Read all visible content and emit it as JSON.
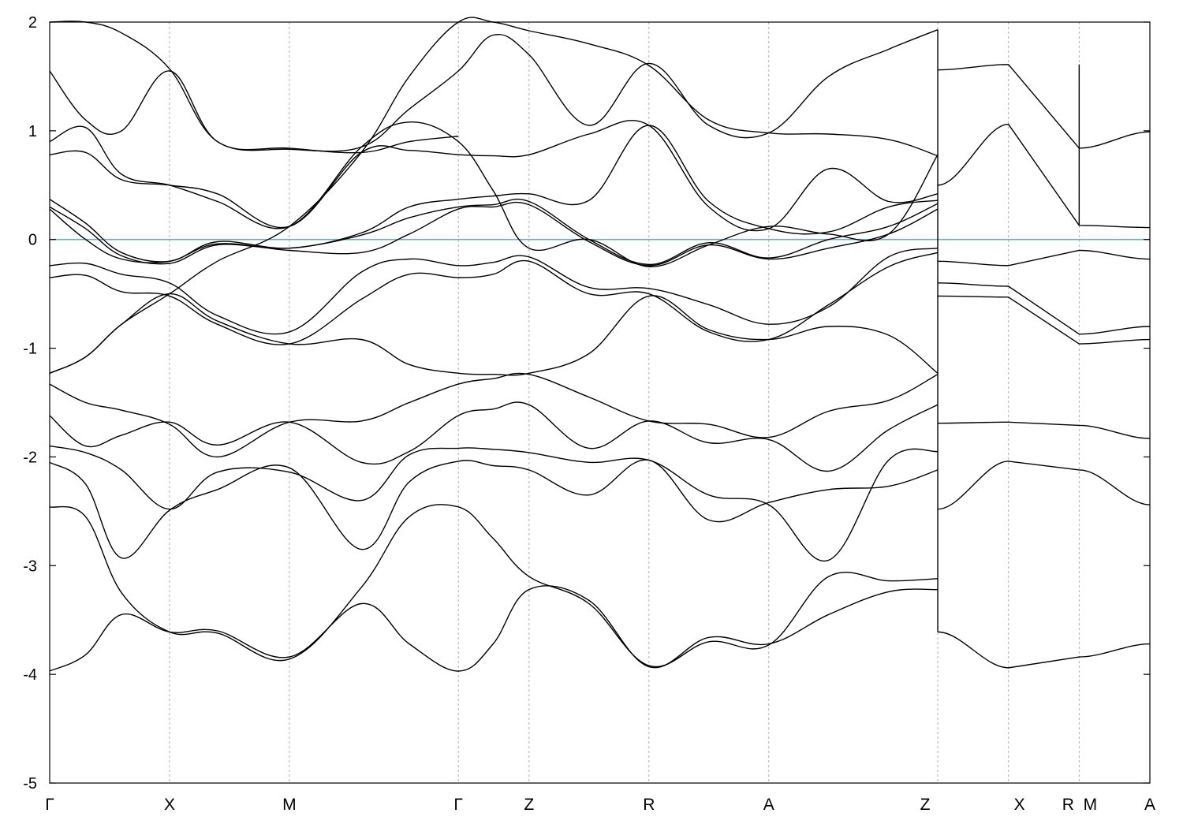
{
  "chart_data": {
    "type": "line",
    "title": "",
    "xlabel": "",
    "ylabel": "",
    "ylim": [
      -5,
      2
    ],
    "yticks": [
      -5,
      -4,
      -3,
      -2,
      -1,
      0,
      1,
      2
    ],
    "kpoints": [
      {
        "label": "Γ",
        "x": 0.0
      },
      {
        "label": "X",
        "x": 1.0
      },
      {
        "label": "M",
        "x": 2.0
      },
      {
        "label": "Γ",
        "x": 3.41
      },
      {
        "label": "Z",
        "x": 4.0
      },
      {
        "label": "R",
        "x": 5.0
      },
      {
        "label": "A",
        "x": 6.0
      },
      {
        "label": "Z",
        "x": 7.41
      },
      {
        "label": "X",
        "x": 8.0
      },
      {
        "label": "R",
        "x": 8.59
      },
      {
        "label": "M",
        "x": 8.59
      },
      {
        "label": "A",
        "x": 9.18
      }
    ],
    "fermi_level": 0,
    "fermi_color": "#5fb3c6",
    "line_color": "#000000",
    "grid": "dashed vertical lines at k-points",
    "series": [
      {
        "x": [
          0,
          0.3,
          0.6,
          1.0,
          1.4,
          2.0,
          2.6,
          3.0,
          3.41,
          3.7,
          4.0,
          4.5,
          5.0,
          5.5,
          6.0,
          6.5,
          7.0,
          7.41
        ],
        "values": [
          -3.97,
          -3.82,
          -3.45,
          -3.61,
          -3.6,
          -3.84,
          -3.35,
          -3.72,
          -3.97,
          -3.72,
          -3.22,
          -3.32,
          -3.93,
          -3.66,
          -3.72,
          -3.45,
          -3.24,
          -3.22
        ]
      },
      {
        "x": [
          0,
          0.3,
          0.6,
          1.0,
          1.4,
          2.0,
          2.6,
          3.0,
          3.41,
          3.7,
          4.0,
          4.5,
          5.0,
          5.5,
          6.0,
          6.5,
          7.0,
          7.41
        ],
        "values": [
          -2.46,
          -2.55,
          -3.25,
          -3.61,
          -3.62,
          -3.86,
          -3.2,
          -2.55,
          -2.46,
          -2.75,
          -3.1,
          -3.35,
          -3.92,
          -3.7,
          -3.73,
          -3.1,
          -3.14,
          -3.12
        ]
      },
      {
        "x": [
          0,
          0.3,
          0.6,
          1.0,
          1.4,
          2.0,
          2.6,
          3.0,
          3.41,
          3.7,
          4.0,
          4.5,
          5.0,
          5.5,
          6.0,
          6.5,
          7.0,
          7.41
        ],
        "values": [
          -2.05,
          -2.25,
          -2.93,
          -2.49,
          -2.3,
          -2.1,
          -2.85,
          -2.23,
          -2.04,
          -2.08,
          -2.12,
          -2.35,
          -2.03,
          -2.58,
          -2.42,
          -2.3,
          -2.27,
          -2.12
        ]
      },
      {
        "x": [
          0,
          0.3,
          0.6,
          1.0,
          1.4,
          2.0,
          2.6,
          3.0,
          3.41,
          3.7,
          4.0,
          4.5,
          5.0,
          5.5,
          6.0,
          6.5,
          7.0,
          7.41
        ],
        "values": [
          -1.9,
          -1.96,
          -2.12,
          -2.48,
          -2.14,
          -2.14,
          -2.4,
          -1.98,
          -1.92,
          -1.93,
          -1.96,
          -2.05,
          -2.03,
          -2.35,
          -2.44,
          -2.95,
          -2.03,
          -1.95
        ]
      },
      {
        "x": [
          0,
          0.3,
          0.6,
          1.0,
          1.4,
          2.0,
          2.6,
          3.0,
          3.41,
          3.7,
          4.0,
          4.5,
          5.0,
          5.5,
          6.0,
          6.5,
          7.0,
          7.41
        ],
        "values": [
          -1.62,
          -1.9,
          -1.8,
          -1.68,
          -1.89,
          -1.68,
          -2.05,
          -1.95,
          -1.62,
          -1.56,
          -1.52,
          -1.92,
          -1.67,
          -1.87,
          -1.84,
          -2.13,
          -1.75,
          -1.52
        ]
      },
      {
        "x": [
          0,
          0.3,
          0.6,
          1.0,
          1.4,
          2.0,
          2.6,
          3.0,
          3.41,
          3.7,
          4.0,
          4.5,
          5.0,
          5.5,
          6.0,
          6.5,
          7.0,
          7.41
        ],
        "values": [
          -1.33,
          -1.5,
          -1.57,
          -1.7,
          -2.0,
          -1.68,
          -1.67,
          -1.5,
          -1.33,
          -1.28,
          -1.24,
          -1.45,
          -1.67,
          -1.7,
          -1.82,
          -1.58,
          -1.48,
          -1.24
        ]
      },
      {
        "x": [
          0,
          0.3,
          0.6,
          1.0,
          1.4,
          2.0,
          2.6,
          3.0,
          3.41,
          3.7,
          4.0,
          4.5,
          5.0,
          5.5,
          6.0,
          6.5,
          7.0,
          7.41
        ],
        "values": [
          -1.23,
          -1.08,
          -0.78,
          -0.5,
          -0.75,
          -0.96,
          -0.92,
          -1.15,
          -1.23,
          -1.24,
          -1.23,
          -1.05,
          -0.52,
          -0.83,
          -0.92,
          -0.8,
          -0.88,
          -1.23
        ]
      },
      {
        "x": [
          0,
          0.3,
          0.6,
          1.0,
          1.4,
          2.0,
          2.6,
          3.0,
          3.41,
          3.7,
          4.0,
          4.5,
          5.0,
          5.5,
          6.0,
          6.5,
          7.0,
          7.41
        ],
        "values": [
          -0.35,
          -0.33,
          -0.48,
          -0.52,
          -0.78,
          -0.96,
          -0.55,
          -0.32,
          -0.35,
          -0.32,
          -0.2,
          -0.5,
          -0.5,
          -0.85,
          -0.92,
          -0.6,
          -0.25,
          -0.12
        ]
      },
      {
        "x": [
          0,
          0.3,
          0.6,
          1.0,
          1.4,
          2.0,
          2.6,
          3.0,
          3.41,
          3.7,
          4.0,
          4.5,
          5.0,
          5.5,
          6.0,
          6.5,
          7.0,
          7.41
        ],
        "values": [
          -0.24,
          -0.22,
          -0.32,
          -0.4,
          -0.7,
          -0.85,
          -0.3,
          -0.18,
          -0.24,
          -0.21,
          -0.16,
          -0.44,
          -0.45,
          -0.6,
          -0.78,
          -0.62,
          -0.16,
          -0.08
        ]
      },
      {
        "x": [
          0,
          0.3,
          0.6,
          1.0,
          1.4,
          2.0,
          2.6,
          3.0,
          3.41,
          3.7,
          4.0,
          4.5,
          5.0,
          5.5,
          6.0,
          6.5,
          7.0,
          7.41
        ],
        "values": [
          0.28,
          0.0,
          -0.18,
          -0.2,
          -0.04,
          -0.1,
          -0.12,
          0.05,
          0.28,
          0.3,
          0.32,
          -0.02,
          -0.24,
          -0.05,
          -0.18,
          -0.08,
          0.05,
          0.28
        ]
      },
      {
        "x": [
          0,
          0.3,
          0.6,
          1.0,
          1.4,
          2.0,
          2.6,
          3.0,
          3.41,
          3.7,
          4.0,
          4.5,
          5.0,
          5.5,
          6.0,
          6.5,
          7.0,
          7.41
        ],
        "values": [
          0.3,
          0.1,
          -0.15,
          -0.22,
          -0.05,
          -0.08,
          0.04,
          0.2,
          0.3,
          0.32,
          0.35,
          0.0,
          -0.23,
          -0.03,
          -0.17,
          0.0,
          0.12,
          0.33
        ]
      },
      {
        "x": [
          0,
          0.3,
          0.6,
          1.0,
          1.4,
          2.0,
          2.6,
          3.0,
          3.41,
          3.7,
          4.0,
          4.5,
          5.0,
          5.5,
          6.0,
          6.5,
          7.0,
          7.41
        ],
        "values": [
          0.37,
          0.15,
          -0.12,
          -0.2,
          -0.02,
          -0.08,
          0.06,
          0.3,
          0.37,
          0.4,
          0.42,
          0.36,
          1.05,
          0.35,
          0.1,
          0.07,
          0.3,
          0.36
        ]
      },
      {
        "x": [
          0,
          0.3,
          0.6,
          1.0,
          1.4,
          2.0,
          2.6,
          3.0,
          3.41,
          3.7,
          4.0,
          4.5,
          5.0,
          5.5,
          6.0,
          6.5,
          7.0,
          7.41
        ],
        "values": [
          0.78,
          0.8,
          0.55,
          0.5,
          0.42,
          0.12,
          0.8,
          0.82,
          0.78,
          0.77,
          0.78,
          0.97,
          1.05,
          0.3,
          0.1,
          0.65,
          0.35,
          0.42
        ]
      },
      {
        "x": [
          0,
          0.3,
          0.6,
          1.0,
          1.4,
          2.0,
          2.6,
          3.0,
          3.41,
          3.7,
          4.0,
          4.5,
          5.0,
          5.5,
          6.0,
          6.5,
          7.0,
          7.41
        ],
        "values": [
          0.9,
          1.03,
          0.6,
          0.5,
          0.35,
          0.12,
          0.85,
          1.08,
          0.9,
          0.45,
          -0.08,
          0.0,
          -0.25,
          -0.05,
          0.12,
          0.05,
          0.05,
          0.78
        ]
      },
      {
        "x": [
          0,
          0.3,
          0.6,
          1.0,
          1.4,
          2.0,
          2.6,
          3.0,
          3.41,
          3.7,
          4.0,
          4.5,
          5.0,
          5.5,
          6.0,
          6.5,
          7.0,
          7.41
        ],
        "values": [
          1.55,
          1.1,
          1.0,
          1.55,
          0.9,
          0.83,
          0.85,
          1.2,
          1.55,
          1.88,
          1.7,
          1.05,
          1.62,
          1.05,
          0.98,
          1.5,
          1.75,
          1.93
        ]
      },
      {
        "x": [
          0,
          0.3,
          0.6,
          1.0,
          1.4,
          2.0,
          2.6,
          3.0,
          3.41,
          3.7,
          4.0,
          4.5,
          5.0,
          5.5,
          6.0,
          6.5,
          7.0,
          7.41
        ],
        "values": [
          -1.23,
          -1.08,
          -0.78,
          -0.5,
          -0.2,
          0.12,
          0.8,
          1.5,
          2.0,
          2.0,
          1.92,
          1.8,
          1.6,
          1.1,
          0.98,
          0.97,
          0.92,
          0.77
        ]
      },
      {
        "x": [
          0,
          0.3,
          0.6,
          1.0,
          1.4,
          2.0,
          2.6,
          3.0,
          3.41
        ],
        "values": [
          2.0,
          2.0,
          1.9,
          1.57,
          0.9,
          0.84,
          0.8,
          0.9,
          0.95
        ]
      }
    ],
    "tail_series": [
      {
        "x": [
          7.41,
          8.0,
          8.59,
          9.18
        ],
        "values": [
          1.56,
          1.61,
          0.84,
          0.99
        ]
      },
      {
        "x": [
          7.41,
          8.0,
          8.59,
          9.18
        ],
        "values": [
          0.5,
          1.06,
          0.13,
          0.11
        ]
      },
      {
        "x": [
          7.41,
          8.0,
          8.59,
          9.18
        ],
        "values": [
          -0.2,
          -0.24,
          -0.1,
          -0.18
        ]
      },
      {
        "x": [
          7.41,
          8.0,
          8.59,
          9.18
        ],
        "values": [
          -0.4,
          -0.43,
          -0.87,
          -0.8
        ]
      },
      {
        "x": [
          7.41,
          8.0,
          8.59,
          9.18
        ],
        "values": [
          -0.52,
          -0.53,
          -0.96,
          -0.92
        ]
      },
      {
        "x": [
          7.41,
          8.0,
          8.59,
          9.18
        ],
        "values": [
          -1.69,
          -1.68,
          -1.71,
          -1.83
        ]
      },
      {
        "x": [
          7.41,
          8.0,
          8.59,
          9.18
        ],
        "values": [
          -2.48,
          -2.04,
          -2.12,
          -2.44
        ]
      },
      {
        "x": [
          7.41,
          8.0,
          8.59,
          9.18
        ],
        "values": [
          -3.61,
          -3.94,
          -3.84,
          -3.72
        ]
      }
    ]
  }
}
